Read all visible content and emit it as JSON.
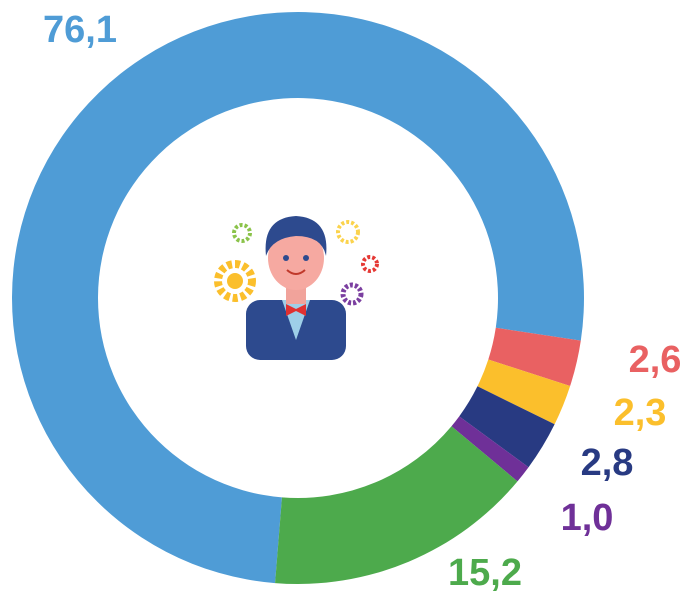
{
  "chart_data": {
    "type": "donut",
    "categories": [
      null,
      null,
      null,
      null,
      null,
      null
    ],
    "values": [
      76.1,
      2.6,
      2.3,
      2.8,
      1.0,
      15.2
    ],
    "value_labels": [
      "76,1",
      "2,6",
      "2,3",
      "2,8",
      "1,0",
      "15,2"
    ],
    "colors": [
      "#4f9cd6",
      "#e96162",
      "#fbbf2c",
      "#283a82",
      "#6f3098",
      "#4daa4c"
    ]
  }
}
